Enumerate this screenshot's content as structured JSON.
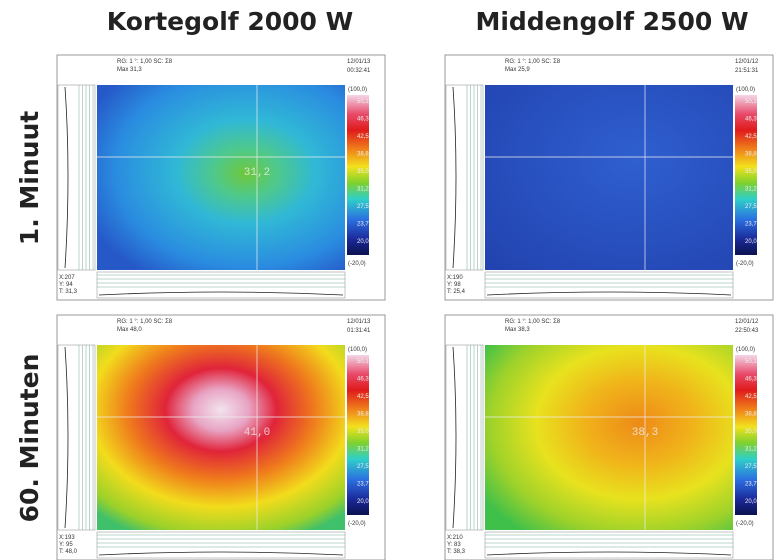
{
  "columns": [
    "Kortegolf 2000 W",
    "Middengolf 2500 W"
  ],
  "rows": [
    "1. Minuut",
    "60. Minuten"
  ],
  "panels": [
    {
      "header": "RG: 1  °: 1,00  SC: Σ8",
      "max": "Max 31,3",
      "date": "12/01/13",
      "time": "00:32:41",
      "scale_top": "(100,0)",
      "scale_labels": [
        "50,1",
        "46,3",
        "42,5",
        "38,8",
        "35,0",
        "31,2",
        "27,5",
        "23,7",
        "20,0"
      ],
      "scale_bottom": "(-20,0)",
      "center": "31,2",
      "x": "X:207",
      "y": "Y: 94",
      "t": "T: 31,3"
    },
    {
      "header": "RG: 1  °: 1,00  SC: Σ8",
      "max": "Max 25,9",
      "date": "12/01/12",
      "time": "21:51:31",
      "scale_top": "(100,0)",
      "scale_labels": [
        "50,1",
        "46,3",
        "42,5",
        "38,8",
        "35,0",
        "31,2",
        "27,5",
        "23,7",
        "20,0"
      ],
      "scale_bottom": "(-20,0)",
      "center": "",
      "x": "X:190",
      "y": "Y: 98",
      "t": "T: 25,4"
    },
    {
      "header": "RG: 1  °: 1,00  SC: Σ8",
      "max": "Max 48,0",
      "date": "12/01/13",
      "time": "01:31:41",
      "scale_top": "(100,0)",
      "scale_labels": [
        "50,1",
        "46,3",
        "42,5",
        "38,8",
        "35,0",
        "31,2",
        "27,5",
        "23,7",
        "20,0"
      ],
      "scale_bottom": "(-20,0)",
      "center": "41,0",
      "x": "X:193",
      "y": "Y: 95",
      "t": "T: 48,0"
    },
    {
      "header": "RG: 1  °: 1,00  SC: Σ8",
      "max": "Max 38,3",
      "date": "12/01/12",
      "time": "22:50:43",
      "scale_top": "(100,0)",
      "scale_labels": [
        "50,1",
        "46,3",
        "42,5",
        "38,8",
        "35,0",
        "31,2",
        "27,5",
        "23,7",
        "20,0"
      ],
      "scale_bottom": "(-20,0)",
      "center": "38,3",
      "x": "X:210",
      "y": "Y: 83",
      "t": "T: 38,3"
    }
  ]
}
